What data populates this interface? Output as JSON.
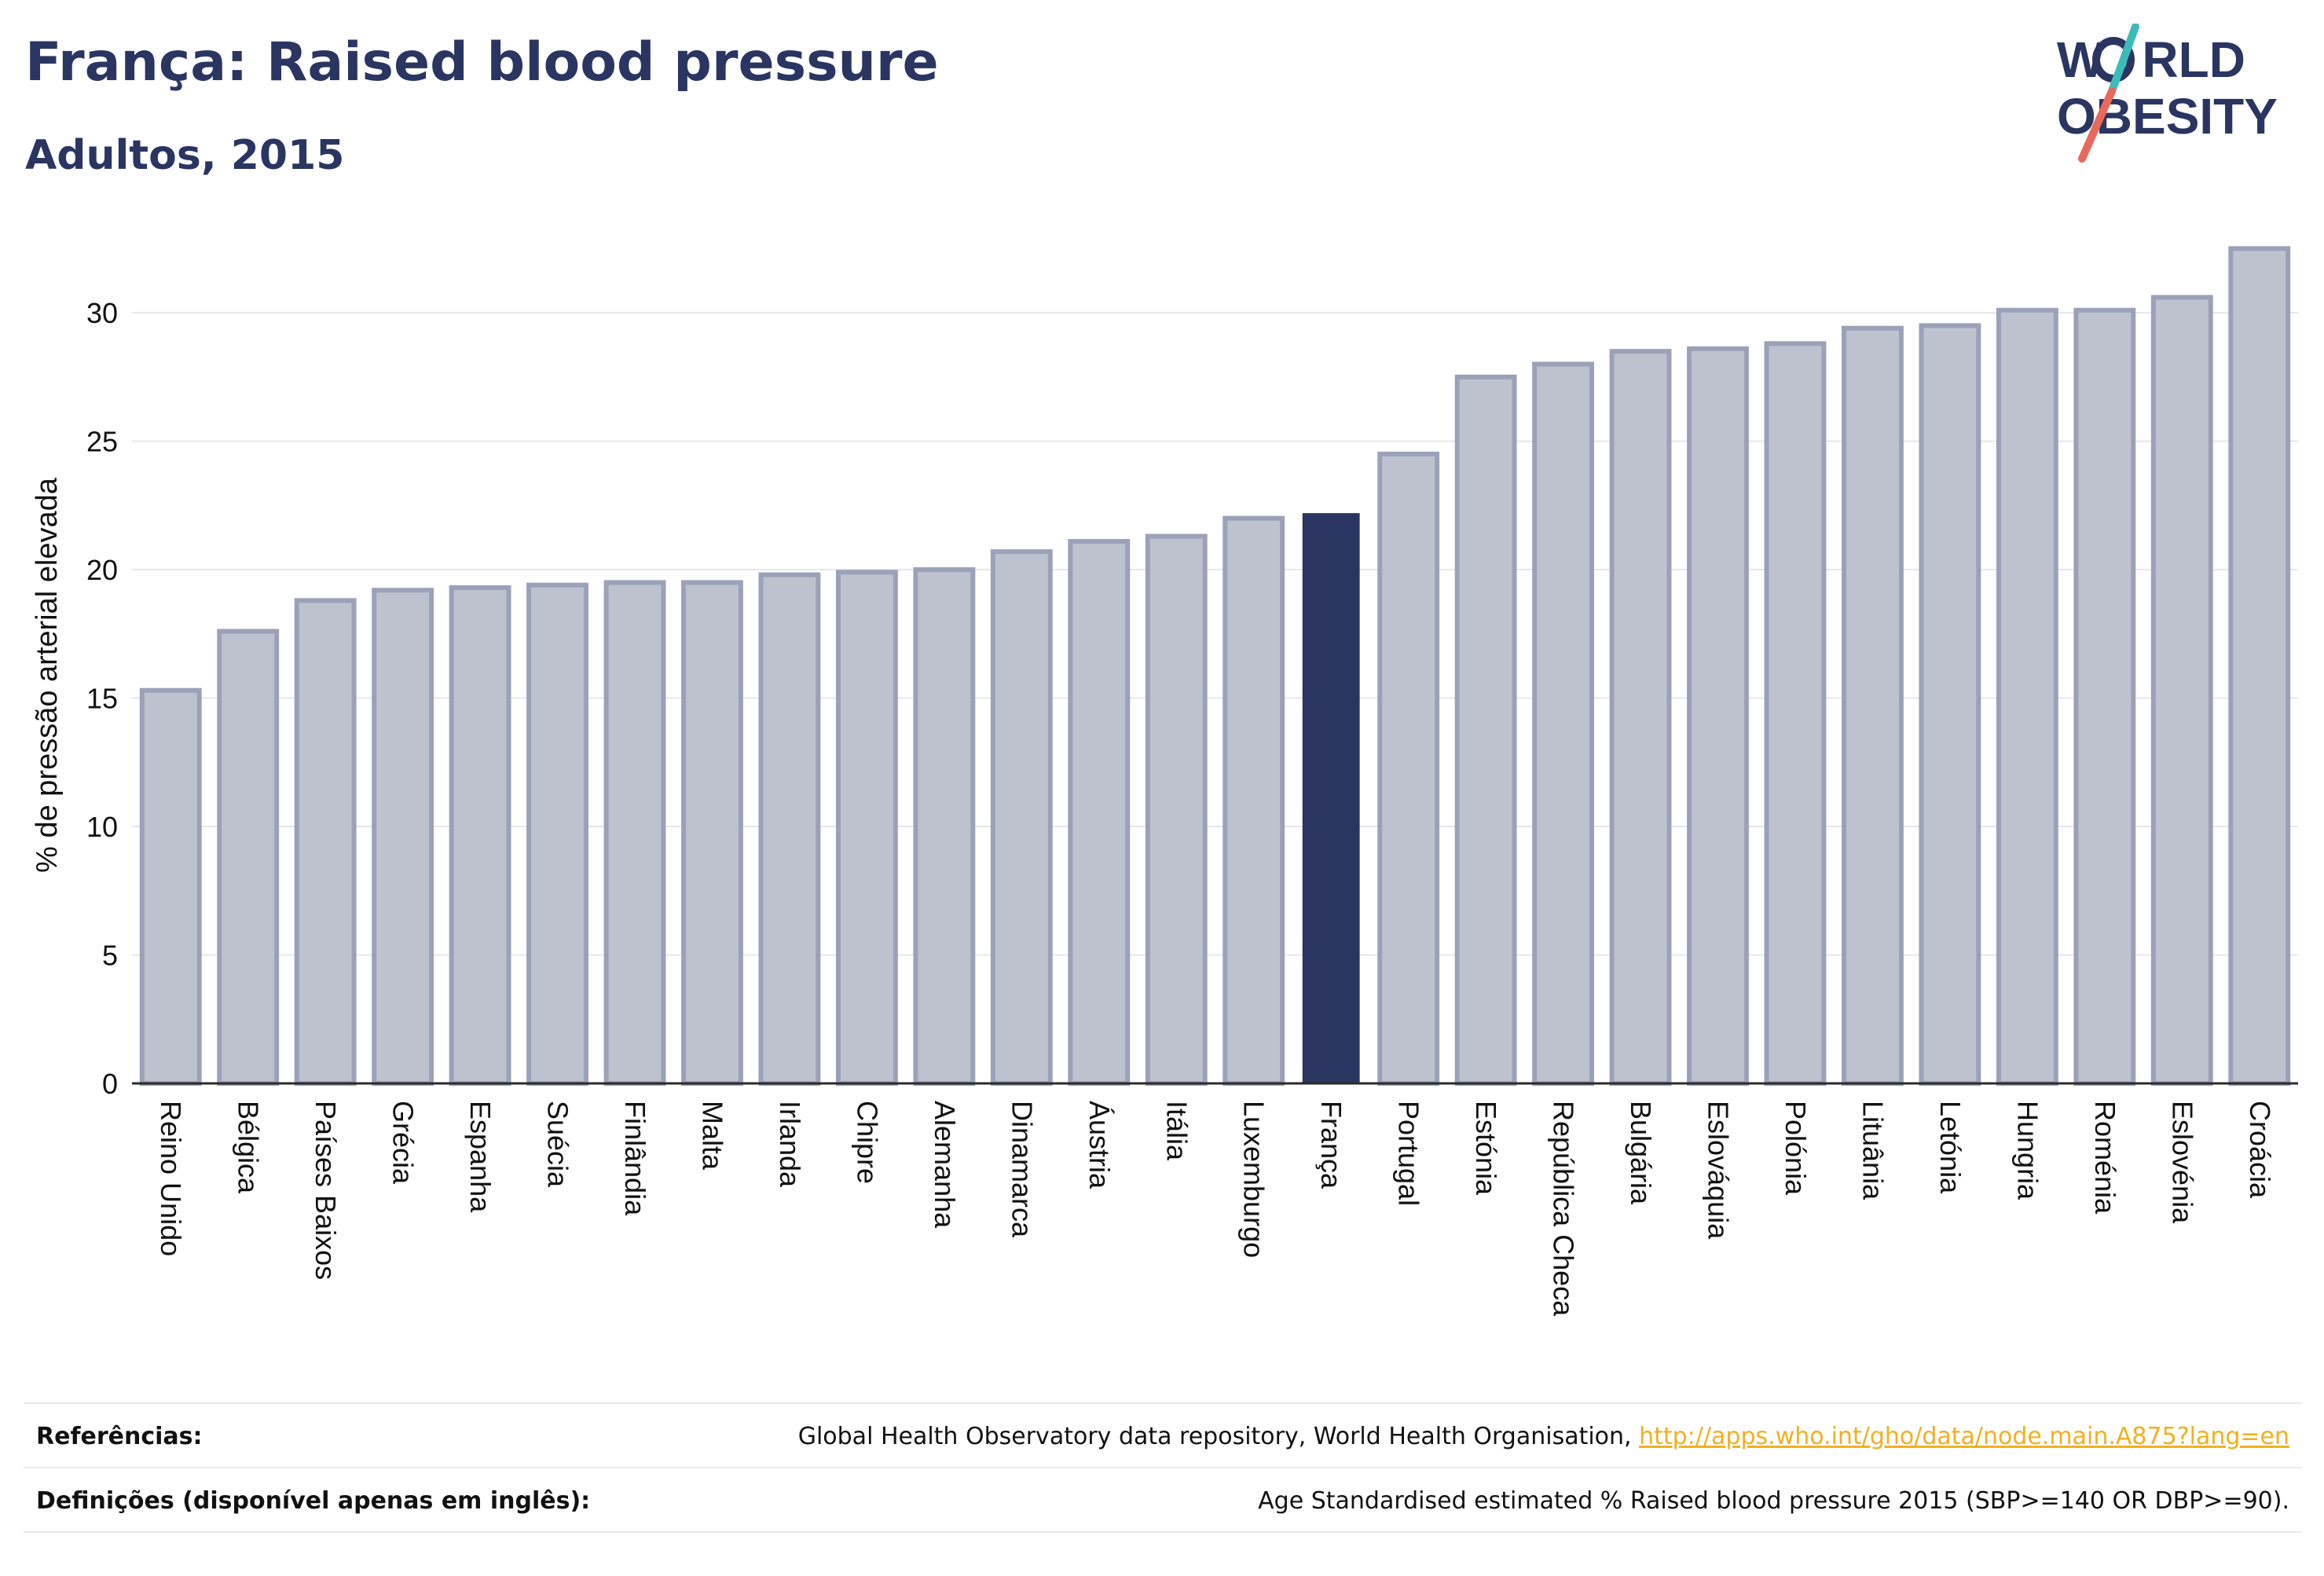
{
  "header": {
    "title": "França: Raised blood pressure",
    "subtitle": "Adultos, 2015"
  },
  "logo": {
    "line1_a": "W",
    "line1_b": "RLD",
    "line2_a": "O",
    "line2_b": "BESITY",
    "colors": {
      "text": "#2a3561",
      "slash_top": "#3bbcb8",
      "slash_bottom": "#e8685a"
    }
  },
  "chart_data": {
    "type": "bar",
    "title": "França: Raised blood pressure",
    "subtitle": "Adultos, 2015",
    "xlabel": "",
    "ylabel": "% de pressão arterial elevada",
    "ylim": [
      0,
      33
    ],
    "yticks": [
      0,
      5,
      10,
      15,
      20,
      25,
      30
    ],
    "grid": true,
    "highlight": "França",
    "colors": {
      "bar_fill": "#bec2cf",
      "bar_stroke": "#9aa1b8",
      "highlight": "#2a3561",
      "grid": "#e6e7ec",
      "axis": "#2b2b2b"
    },
    "categories": [
      "Reino Unido",
      "Bélgica",
      "Países Baixos",
      "Grécia",
      "Espanha",
      "Suécia",
      "Finlândia",
      "Malta",
      "Irlanda",
      "Chipre",
      "Alemanha",
      "Dinamarca",
      "Áustria",
      "Itália",
      "Luxemburgo",
      "França",
      "Portugal",
      "Estónia",
      "República Checa",
      "Bulgária",
      "Eslováquia",
      "Polónia",
      "Lituânia",
      "Letónia",
      "Hungria",
      "Roménia",
      "Eslovénia",
      "Croácia"
    ],
    "values": [
      15.3,
      17.6,
      18.8,
      19.2,
      19.3,
      19.4,
      19.5,
      19.5,
      19.8,
      19.9,
      20.0,
      20.7,
      21.1,
      21.3,
      22.0,
      22.2,
      24.5,
      27.5,
      28.0,
      28.5,
      28.6,
      28.8,
      29.4,
      29.5,
      30.1,
      30.1,
      30.6,
      32.5
    ]
  },
  "footer": {
    "references_label": "Referências:",
    "references_text": "Global Health Observatory data repository, World Health Organisation,",
    "references_link": "http://apps.who.int/gho/data/node.main.A875?lang=en",
    "definitions_label": "Definições (disponível apenas em inglês):",
    "definitions_text": "Age Standardised estimated % Raised blood pressure 2015 (SBP>=140 OR DBP>=90)."
  }
}
